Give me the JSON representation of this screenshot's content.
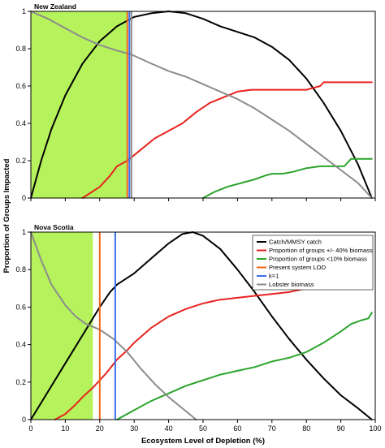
{
  "chart_data": {
    "type": "line",
    "xlabel": "Ecosystem Level of Depletion (%)",
    "ylabel": "Proportion of Groups Impacted",
    "xlim": [
      0,
      100
    ],
    "ylim": [
      0,
      1
    ],
    "x_ticks": [
      0,
      10,
      20,
      30,
      40,
      50,
      60,
      70,
      80,
      90,
      100
    ],
    "y_ticks": [
      0,
      0.2,
      0.4,
      0.6,
      0.8,
      1
    ],
    "legend": {
      "placement": "top-right of lower panel",
      "entries": [
        {
          "label": "Catch/MMSY catch",
          "color": "#000000"
        },
        {
          "label": "Proportion of groups +/- 40% biomass",
          "color": "#e8231f"
        },
        {
          "label": "Proportion of groups <10% biomass",
          "color": "#2ca42c"
        },
        {
          "label": "Present system LOD",
          "color": "#f06418"
        },
        {
          "label": "k=1",
          "color": "#3b6ee6"
        },
        {
          "label": "Lobster biomass",
          "color": "#8c8c8c"
        }
      ]
    },
    "panels": [
      {
        "title": "New Zealand",
        "shaded_region": {
          "x": [
            0,
            28
          ],
          "color": "#b5f25c"
        },
        "vlines": [
          {
            "x": 28,
            "color": "#f06418"
          },
          {
            "x": 28.6,
            "color": "#3b6ee6"
          },
          {
            "x": 29.2,
            "color": "#8c8c8c"
          }
        ],
        "series": [
          {
            "color": "#000000",
            "points": [
              [
                0,
                0
              ],
              [
                3,
                0.2
              ],
              [
                6,
                0.37
              ],
              [
                10,
                0.55
              ],
              [
                15,
                0.72
              ],
              [
                20,
                0.84
              ],
              [
                25,
                0.92
              ],
              [
                30,
                0.97
              ],
              [
                35,
                0.99
              ],
              [
                40,
                1.0
              ],
              [
                45,
                0.99
              ],
              [
                50,
                0.96
              ],
              [
                55,
                0.92
              ],
              [
                60,
                0.89
              ],
              [
                65,
                0.86
              ],
              [
                70,
                0.81
              ],
              [
                75,
                0.74
              ],
              [
                80,
                0.64
              ],
              [
                85,
                0.51
              ],
              [
                90,
                0.36
              ],
              [
                95,
                0.18
              ],
              [
                99,
                0.0
              ]
            ]
          },
          {
            "color": "#e8231f",
            "points": [
              [
                15,
                0.0
              ],
              [
                20,
                0.06
              ],
              [
                23,
                0.12
              ],
              [
                25,
                0.17
              ],
              [
                28,
                0.2
              ],
              [
                32,
                0.26
              ],
              [
                36,
                0.32
              ],
              [
                40,
                0.36
              ],
              [
                44,
                0.4
              ],
              [
                48,
                0.46
              ],
              [
                52,
                0.51
              ],
              [
                56,
                0.54
              ],
              [
                60,
                0.57
              ],
              [
                64,
                0.58
              ],
              [
                68,
                0.58
              ],
              [
                72,
                0.58
              ],
              [
                76,
                0.58
              ],
              [
                80,
                0.58
              ],
              [
                82,
                0.59
              ],
              [
                84,
                0.6
              ],
              [
                85,
                0.62
              ],
              [
                90,
                0.62
              ],
              [
                95,
                0.62
              ],
              [
                99,
                0.62
              ]
            ]
          },
          {
            "color": "#2ca42c",
            "points": [
              [
                50,
                0.0
              ],
              [
                53,
                0.03
              ],
              [
                57,
                0.06
              ],
              [
                61,
                0.08
              ],
              [
                65,
                0.1
              ],
              [
                68,
                0.12
              ],
              [
                70,
                0.13
              ],
              [
                73,
                0.13
              ],
              [
                76,
                0.14
              ],
              [
                80,
                0.16
              ],
              [
                84,
                0.17
              ],
              [
                88,
                0.17
              ],
              [
                91,
                0.17
              ],
              [
                93,
                0.21
              ],
              [
                96,
                0.21
              ],
              [
                99,
                0.21
              ]
            ]
          },
          {
            "color": "#8c8c8c",
            "points": [
              [
                0,
                1.0
              ],
              [
                5,
                0.96
              ],
              [
                10,
                0.91
              ],
              [
                15,
                0.86
              ],
              [
                20,
                0.82
              ],
              [
                25,
                0.79
              ],
              [
                29,
                0.77
              ],
              [
                35,
                0.72
              ],
              [
                40,
                0.68
              ],
              [
                45,
                0.65
              ],
              [
                50,
                0.61
              ],
              [
                55,
                0.57
              ],
              [
                60,
                0.53
              ],
              [
                65,
                0.48
              ],
              [
                70,
                0.42
              ],
              [
                75,
                0.36
              ],
              [
                80,
                0.29
              ],
              [
                85,
                0.22
              ],
              [
                90,
                0.15
              ],
              [
                95,
                0.08
              ],
              [
                99,
                0.0
              ]
            ]
          }
        ]
      },
      {
        "title": "Nova Scotia",
        "shaded_region": {
          "x": [
            0,
            18
          ],
          "color": "#b5f25c"
        },
        "vlines": [
          {
            "x": 20,
            "color": "#f06418"
          },
          {
            "x": 24.5,
            "color": "#3b6ee6"
          }
        ],
        "series": [
          {
            "color": "#000000",
            "points": [
              [
                0,
                0
              ],
              [
                5,
                0.15
              ],
              [
                10,
                0.3
              ],
              [
                15,
                0.45
              ],
              [
                20,
                0.6
              ],
              [
                23,
                0.68
              ],
              [
                25,
                0.72
              ],
              [
                30,
                0.78
              ],
              [
                35,
                0.86
              ],
              [
                40,
                0.94
              ],
              [
                44,
                0.99
              ],
              [
                47,
                1.0
              ],
              [
                50,
                0.98
              ],
              [
                55,
                0.91
              ],
              [
                60,
                0.8
              ],
              [
                65,
                0.68
              ],
              [
                70,
                0.55
              ],
              [
                75,
                0.43
              ],
              [
                80,
                0.32
              ],
              [
                85,
                0.22
              ],
              [
                90,
                0.13
              ],
              [
                95,
                0.06
              ],
              [
                99,
                0.0
              ]
            ]
          },
          {
            "color": "#e8231f",
            "points": [
              [
                7,
                0.0
              ],
              [
                10,
                0.03
              ],
              [
                13,
                0.08
              ],
              [
                15,
                0.12
              ],
              [
                18,
                0.17
              ],
              [
                20,
                0.21
              ],
              [
                22,
                0.25
              ],
              [
                25,
                0.32
              ],
              [
                28,
                0.37
              ],
              [
                30,
                0.41
              ],
              [
                35,
                0.49
              ],
              [
                40,
                0.55
              ],
              [
                45,
                0.59
              ],
              [
                50,
                0.62
              ],
              [
                55,
                0.64
              ],
              [
                60,
                0.65
              ],
              [
                65,
                0.66
              ],
              [
                70,
                0.67
              ],
              [
                75,
                0.68
              ],
              [
                80,
                0.7
              ],
              [
                85,
                0.73
              ],
              [
                90,
                0.75
              ],
              [
                95,
                0.77
              ],
              [
                97,
                0.76
              ],
              [
                98,
                0.78
              ],
              [
                99,
                0.78
              ]
            ]
          },
          {
            "color": "#2ca42c",
            "points": [
              [
                25,
                0.0
              ],
              [
                30,
                0.05
              ],
              [
                35,
                0.1
              ],
              [
                40,
                0.14
              ],
              [
                45,
                0.18
              ],
              [
                50,
                0.21
              ],
              [
                55,
                0.24
              ],
              [
                60,
                0.26
              ],
              [
                65,
                0.28
              ],
              [
                70,
                0.31
              ],
              [
                75,
                0.33
              ],
              [
                80,
                0.36
              ],
              [
                85,
                0.41
              ],
              [
                90,
                0.47
              ],
              [
                93,
                0.51
              ],
              [
                96,
                0.53
              ],
              [
                98,
                0.54
              ],
              [
                99,
                0.57
              ]
            ]
          },
          {
            "color": "#8c8c8c",
            "points": [
              [
                0,
                1.0
              ],
              [
                3,
                0.85
              ],
              [
                6,
                0.72
              ],
              [
                10,
                0.61
              ],
              [
                13,
                0.55
              ],
              [
                16,
                0.51
              ],
              [
                20,
                0.48
              ],
              [
                24,
                0.43
              ],
              [
                28,
                0.36
              ],
              [
                32,
                0.27
              ],
              [
                36,
                0.19
              ],
              [
                40,
                0.12
              ],
              [
                44,
                0.06
              ],
              [
                48,
                0.0
              ]
            ]
          }
        ]
      }
    ]
  }
}
